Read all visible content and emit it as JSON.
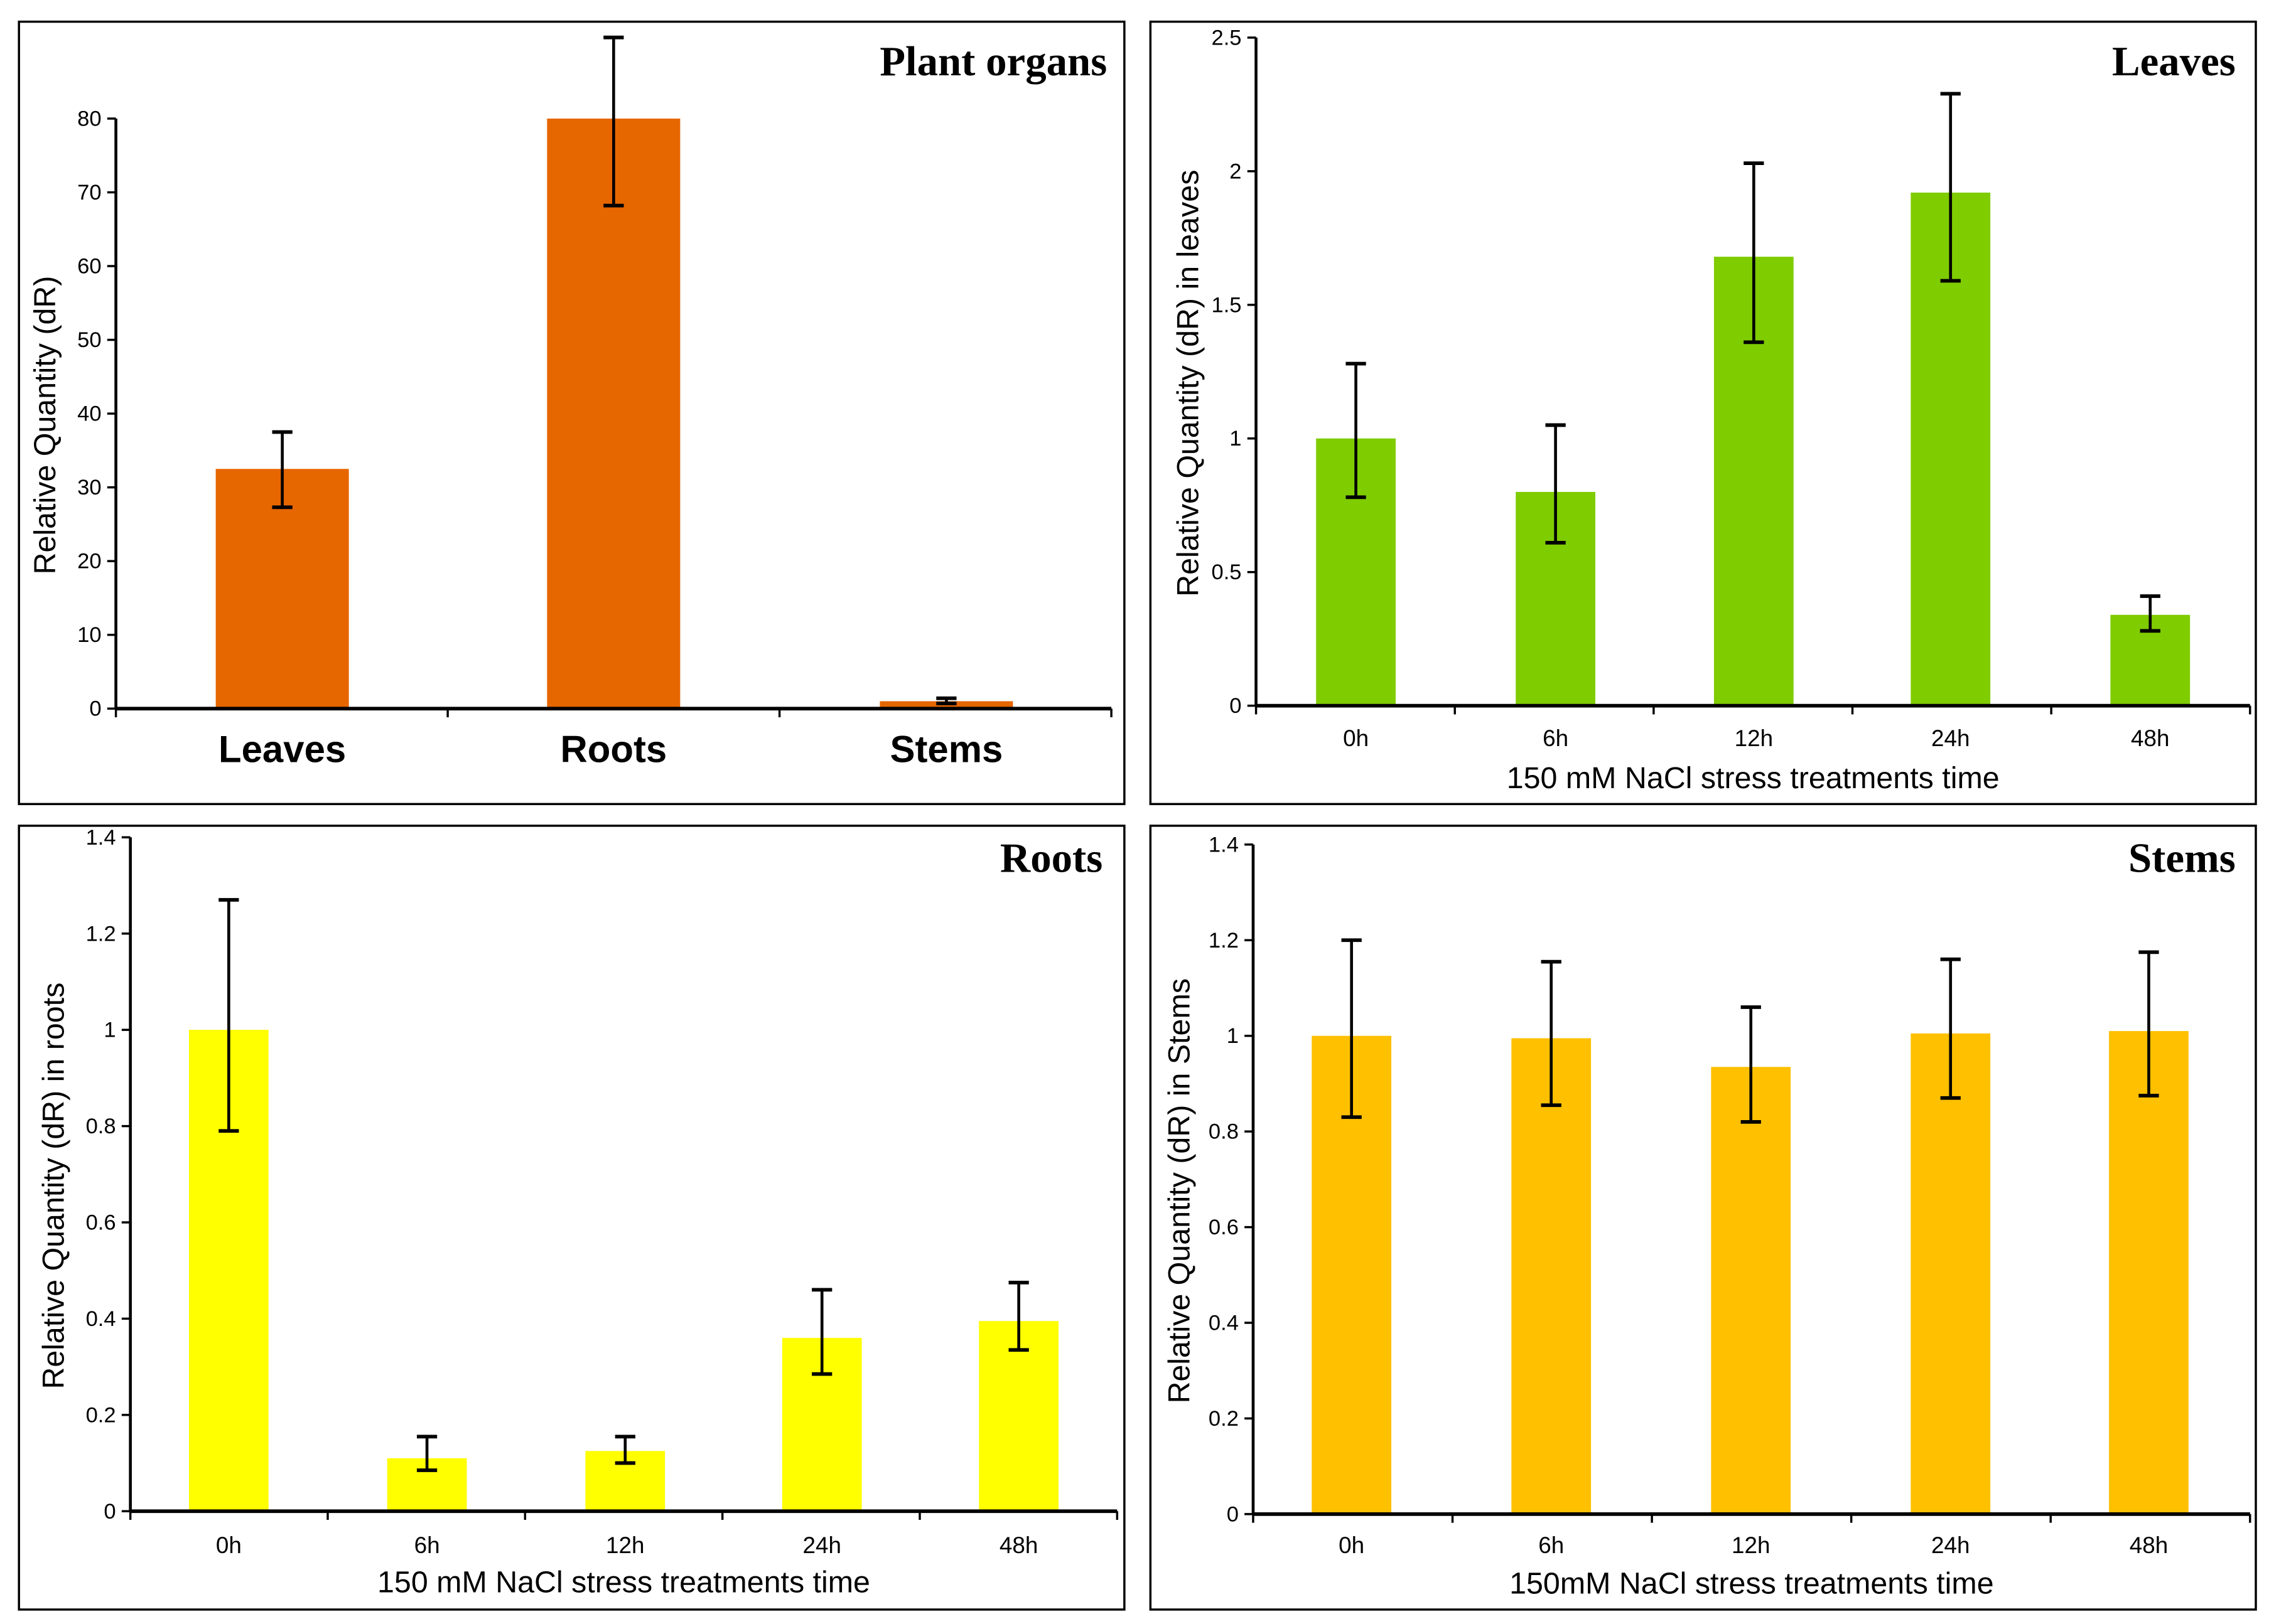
{
  "chart_data": [
    {
      "type": "bar",
      "title": "Plant organs",
      "xlabel": "",
      "ylabel": "Relative Quantity (dR)",
      "categories": [
        "Leaves",
        "Roots",
        "Stems"
      ],
      "values": [
        32.5,
        80,
        1
      ],
      "error_low": [
        27.3,
        68.2,
        0.7
      ],
      "error_high": [
        37.5,
        91,
        1.4
      ],
      "ylim": [
        0,
        80
      ],
      "yticks": [
        "0",
        "10",
        "20",
        "30",
        "40",
        "50",
        "60",
        "70",
        "80"
      ],
      "color": "#E66600"
    },
    {
      "type": "bar",
      "title": "Leaves",
      "xlabel": "150 mM NaCl stress treatments  time",
      "ylabel": "Relative Quantity (dR) in leaves",
      "categories": [
        "0h",
        "6h",
        "12h",
        "24h",
        "48h"
      ],
      "values": [
        1.0,
        0.8,
        1.68,
        1.92,
        0.34
      ],
      "error_low": [
        0.78,
        0.61,
        1.36,
        1.59,
        0.28
      ],
      "error_high": [
        1.28,
        1.05,
        2.03,
        2.29,
        0.41
      ],
      "ylim": [
        0,
        2.5
      ],
      "yticks": [
        "0",
        "0.5",
        "1",
        "1.5",
        "2",
        "2.5"
      ],
      "color": "#7FCC00"
    },
    {
      "type": "bar",
      "title": "Roots",
      "xlabel": "150 mM NaCl stress treatments  time",
      "ylabel": "Relative Quantity (dR) in roots",
      "categories": [
        "0h",
        "6h",
        "12h",
        "24h",
        "48h"
      ],
      "values": [
        1.0,
        0.11,
        0.125,
        0.36,
        0.395
      ],
      "error_low": [
        0.79,
        0.085,
        0.1,
        0.285,
        0.335
      ],
      "error_high": [
        1.27,
        0.155,
        0.155,
        0.46,
        0.475
      ],
      "ylim": [
        0,
        1.4
      ],
      "yticks": [
        "0",
        "0.2",
        "0.4",
        "0.6",
        "0.8",
        "1",
        "1.2",
        "1.4"
      ],
      "color": "#FFFF00"
    },
    {
      "type": "bar",
      "title": "Stems",
      "xlabel": "150mM NaCl stress treatments  time",
      "ylabel": "Relative Quantity (dR) in Stems",
      "categories": [
        "0h",
        "6h",
        "12h",
        "24h",
        "48h"
      ],
      "values": [
        1.0,
        0.995,
        0.935,
        1.005,
        1.01
      ],
      "error_low": [
        0.83,
        0.855,
        0.82,
        0.87,
        0.875
      ],
      "error_high": [
        1.2,
        1.155,
        1.06,
        1.16,
        1.175
      ],
      "ylim": [
        0,
        1.4
      ],
      "yticks": [
        "0",
        "0.2",
        "0.4",
        "0.6",
        "0.8",
        "1",
        "1.2",
        "1.4"
      ],
      "color": "#FFC000"
    }
  ]
}
